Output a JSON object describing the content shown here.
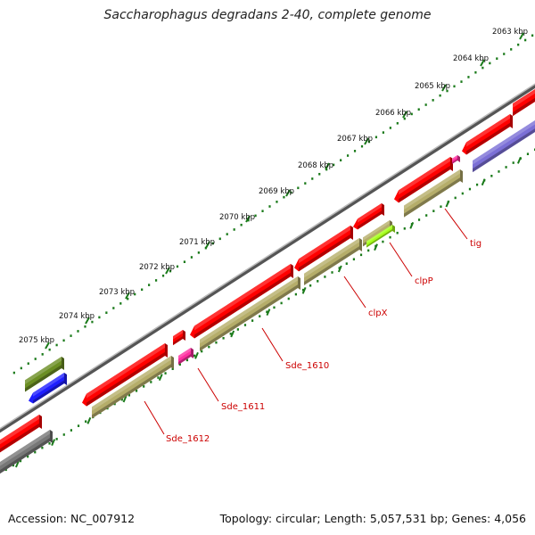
{
  "header": {
    "title": "Saccharophagus degradans 2-40, complete genome"
  },
  "footer": {
    "accession": "Accession: NC_007912",
    "summary": "Topology: circular; Length: 5,057,531 bp; Genes: 4,056"
  },
  "ticks": [
    "2063 kbp",
    "2064 kbp",
    "2065 kbp",
    "2066 kbp",
    "2067 kbp",
    "2068 kbp",
    "2069 kbp",
    "2070 kbp",
    "2071 kbp",
    "2072 kbp",
    "2073 kbp",
    "2074 kbp",
    "2075 kbp"
  ],
  "gene_labels": [
    "tig",
    "clpP",
    "clpX",
    "Sde_1610",
    "Sde_1611",
    "Sde_1612"
  ],
  "colors": {
    "cds": "#ff0000",
    "gene_tan": "#b5ad6a",
    "gene_purple": "#7b6fd6",
    "gene_olive": "#6b8e23",
    "gene_blue": "#1e1eff",
    "gene_pink": "#ff2fa0",
    "gene_lime": "#a6ff1a",
    "gene_gray": "#777777",
    "backbone": "#888888",
    "tick": "#1a7a1a",
    "label": "#cc0000"
  }
}
